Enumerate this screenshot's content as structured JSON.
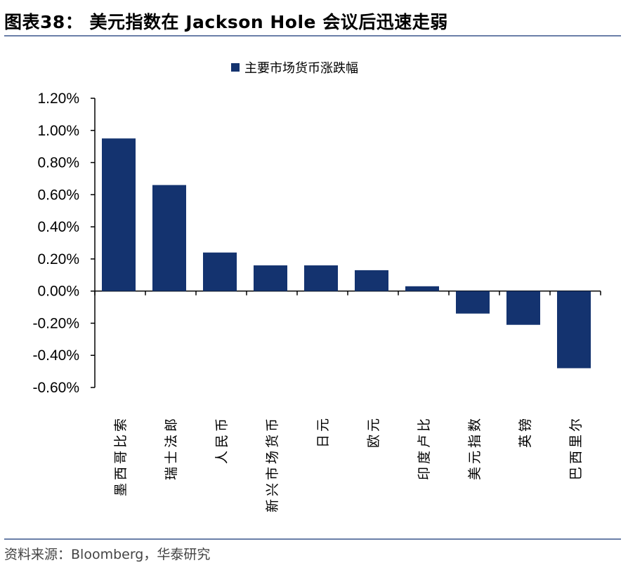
{
  "header": {
    "title": "图表38：  美元指数在 Jackson Hole 会议后迅速走弱"
  },
  "footer": {
    "source": "资料来源：Bloomberg，华泰研究"
  },
  "chart_data": {
    "type": "bar",
    "title": "",
    "xlabel": "",
    "ylabel": "",
    "legend": {
      "position": "top-center"
    },
    "ylim": [
      -0.6,
      1.2
    ],
    "yticks": [
      -0.6,
      -0.4,
      -0.2,
      0,
      0.2,
      0.4,
      0.6,
      0.8,
      1.0,
      1.2
    ],
    "ytick_labels": [
      "-0.60%",
      "-0.40%",
      "-0.20%",
      "0.00%",
      "0.20%",
      "0.40%",
      "0.60%",
      "0.80%",
      "1.00%",
      "1.20%"
    ],
    "grid": false,
    "categories": [
      "墨西哥比索",
      "瑞士法郎",
      "人民币",
      "新兴市场货币",
      "日元",
      "欧元",
      "印度卢比",
      "美元指数",
      "英镑",
      "巴西里尔"
    ],
    "series": [
      {
        "name": "主要市场货币涨跌幅",
        "color": "#14336f",
        "values": [
          0.95,
          0.66,
          0.24,
          0.16,
          0.16,
          0.13,
          0.03,
          -0.14,
          -0.21,
          -0.48
        ]
      }
    ]
  }
}
